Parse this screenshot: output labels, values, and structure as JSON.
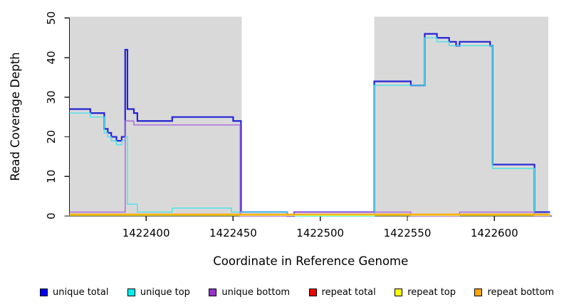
{
  "chart_data": {
    "type": "line",
    "step": true,
    "title": "",
    "xlabel": "Coordinate in Reference Genome",
    "ylabel": "Read Coverage Depth",
    "xlim": [
      1422356,
      1422633
    ],
    "ylim": [
      0,
      50
    ],
    "grid": false,
    "legend_position": "bottom",
    "x_ticks": [
      1422400,
      1422450,
      1422500,
      1422550,
      1422600
    ],
    "x_tick_labels": [
      "1422400",
      "1422450",
      "1422500",
      "1422550",
      "1422600"
    ],
    "y_ticks": [
      0,
      10,
      20,
      30,
      40,
      50
    ],
    "y_tick_labels": [
      "0",
      "10",
      "20",
      "30",
      "40",
      "50"
    ],
    "shaded_regions": [
      {
        "x0": 1422356,
        "x1": 1422455,
        "color": "#d9d9d9"
      },
      {
        "x0": 1422531,
        "x1": 1422631,
        "color": "#d9d9d9"
      }
    ],
    "series": [
      {
        "name": "unique total",
        "color": "#2424d6",
        "width": 2.2,
        "points": [
          [
            1422356,
            27
          ],
          [
            1422368,
            26
          ],
          [
            1422376,
            22
          ],
          [
            1422378,
            21
          ],
          [
            1422380,
            20
          ],
          [
            1422383,
            19
          ],
          [
            1422386,
            20
          ],
          [
            1422388,
            42
          ],
          [
            1422389.3,
            27
          ],
          [
            1422393,
            26
          ],
          [
            1422395,
            24
          ],
          [
            1422415,
            25
          ],
          [
            1422450,
            24
          ],
          [
            1422454.5,
            1
          ],
          [
            1422481,
            0
          ],
          [
            1422485,
            1
          ],
          [
            1422531,
            34
          ],
          [
            1422552,
            33
          ],
          [
            1422560,
            46
          ],
          [
            1422567,
            45
          ],
          [
            1422574,
            44
          ],
          [
            1422578,
            43
          ],
          [
            1422580,
            44
          ],
          [
            1422597.5,
            43
          ],
          [
            1422599,
            13
          ],
          [
            1422623,
            1
          ],
          [
            1422632,
            1
          ]
        ]
      },
      {
        "name": "unique top",
        "color": "#45e4e8",
        "width": 1.4,
        "points": [
          [
            1422356,
            26
          ],
          [
            1422368,
            25
          ],
          [
            1422376,
            21
          ],
          [
            1422378,
            20
          ],
          [
            1422380,
            19
          ],
          [
            1422383,
            18
          ],
          [
            1422386,
            19
          ],
          [
            1422388,
            20
          ],
          [
            1422389.3,
            3
          ],
          [
            1422395,
            1
          ],
          [
            1422415,
            2
          ],
          [
            1422449,
            1
          ],
          [
            1422481,
            0
          ],
          [
            1422531,
            33
          ],
          [
            1422552,
            33
          ],
          [
            1422560,
            45
          ],
          [
            1422567,
            44
          ],
          [
            1422574,
            43
          ],
          [
            1422599,
            12
          ],
          [
            1422623,
            0
          ],
          [
            1422632,
            0
          ]
        ]
      },
      {
        "name": "unique bottom",
        "color": "#aa66dd",
        "width": 1.4,
        "points": [
          [
            1422356,
            1
          ],
          [
            1422388,
            24
          ],
          [
            1422393,
            23
          ],
          [
            1422454,
            0
          ],
          [
            1422485,
            1
          ],
          [
            1422552,
            0
          ],
          [
            1422580,
            1
          ],
          [
            1422623,
            0
          ],
          [
            1422632,
            0
          ]
        ]
      },
      {
        "name": "repeat total",
        "color": "#e02020",
        "width": 1.2,
        "points": [
          [
            1422356,
            0
          ],
          [
            1422632,
            0
          ]
        ]
      },
      {
        "name": "repeat top",
        "color": "#ffff33",
        "width": 1.3,
        "points": [
          [
            1422356,
            0
          ],
          [
            1422632,
            0
          ]
        ]
      },
      {
        "name": "repeat bottom",
        "color": "#ffa500",
        "width": 1.8,
        "points": [
          [
            1422356,
            0
          ],
          [
            1422632,
            0
          ]
        ]
      }
    ]
  },
  "legend": {
    "items": [
      {
        "label": "unique total",
        "color": "#0000ee"
      },
      {
        "label": "unique top",
        "color": "#00eeee"
      },
      {
        "label": "unique bottom",
        "color": "#9933cc"
      },
      {
        "label": "repeat total",
        "color": "#ee0000"
      },
      {
        "label": "repeat top",
        "color": "#ffff00"
      },
      {
        "label": "repeat bottom",
        "color": "#ffa500"
      }
    ]
  }
}
